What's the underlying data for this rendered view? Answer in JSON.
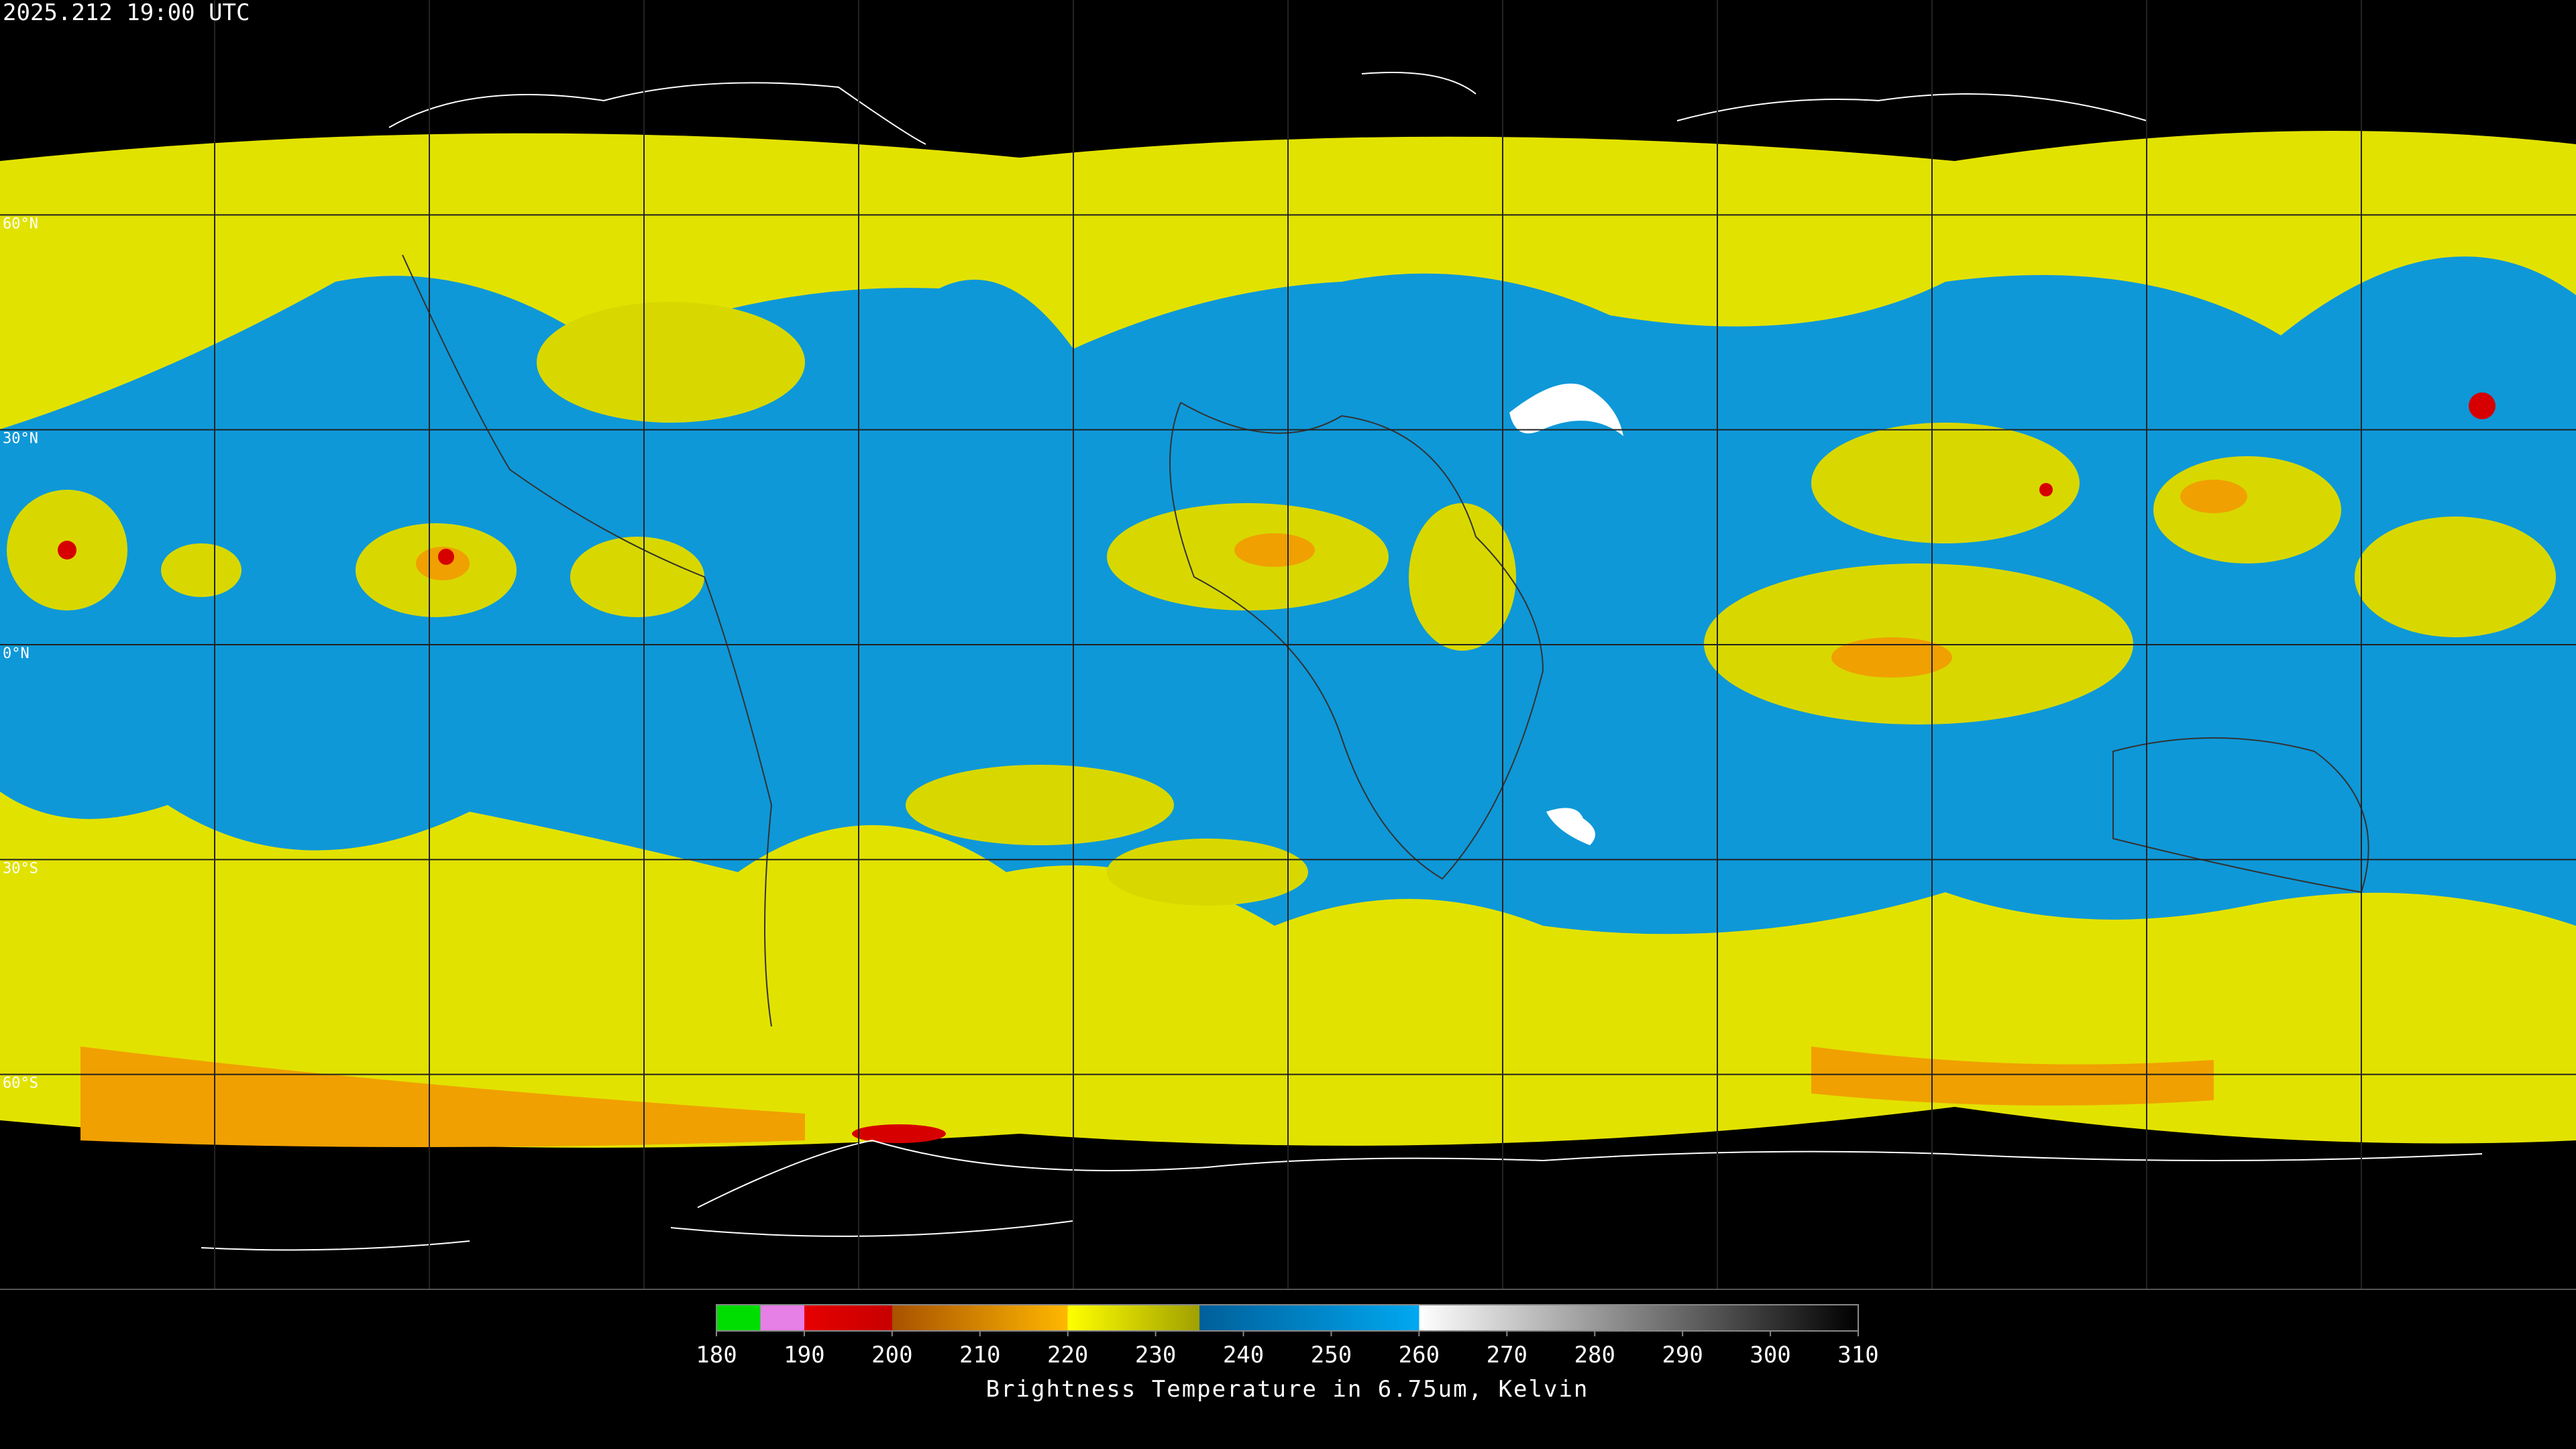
{
  "timestamp": "2025.212 19:00 UTC",
  "map": {
    "lat_labels": [
      "60°N",
      "30°N",
      "0°N",
      "30°S",
      "60°S"
    ]
  },
  "colorbar": {
    "title": "Brightness Temperature in 6.75um, Kelvin",
    "lim": [
      180,
      310
    ],
    "ticks": [
      180,
      190,
      200,
      210,
      220,
      230,
      240,
      250,
      260,
      270,
      280,
      290,
      300,
      310
    ],
    "stops": [
      {
        "value": 180,
        "color": "#00dd00"
      },
      {
        "value": 185,
        "color": "#00dd00"
      },
      {
        "value": 185,
        "color": "#e67fe6"
      },
      {
        "value": 190,
        "color": "#e67fe6"
      },
      {
        "value": 190,
        "color": "#e60000"
      },
      {
        "value": 200,
        "color": "#c80000"
      },
      {
        "value": 200,
        "color": "#a85200"
      },
      {
        "value": 220,
        "color": "#ffb800"
      },
      {
        "value": 220,
        "color": "#ffff00"
      },
      {
        "value": 235,
        "color": "#a0a000"
      },
      {
        "value": 235,
        "color": "#005f9a"
      },
      {
        "value": 260,
        "color": "#00a8f0"
      },
      {
        "value": 260,
        "color": "#ffffff"
      },
      {
        "value": 310,
        "color": "#000000"
      }
    ]
  }
}
